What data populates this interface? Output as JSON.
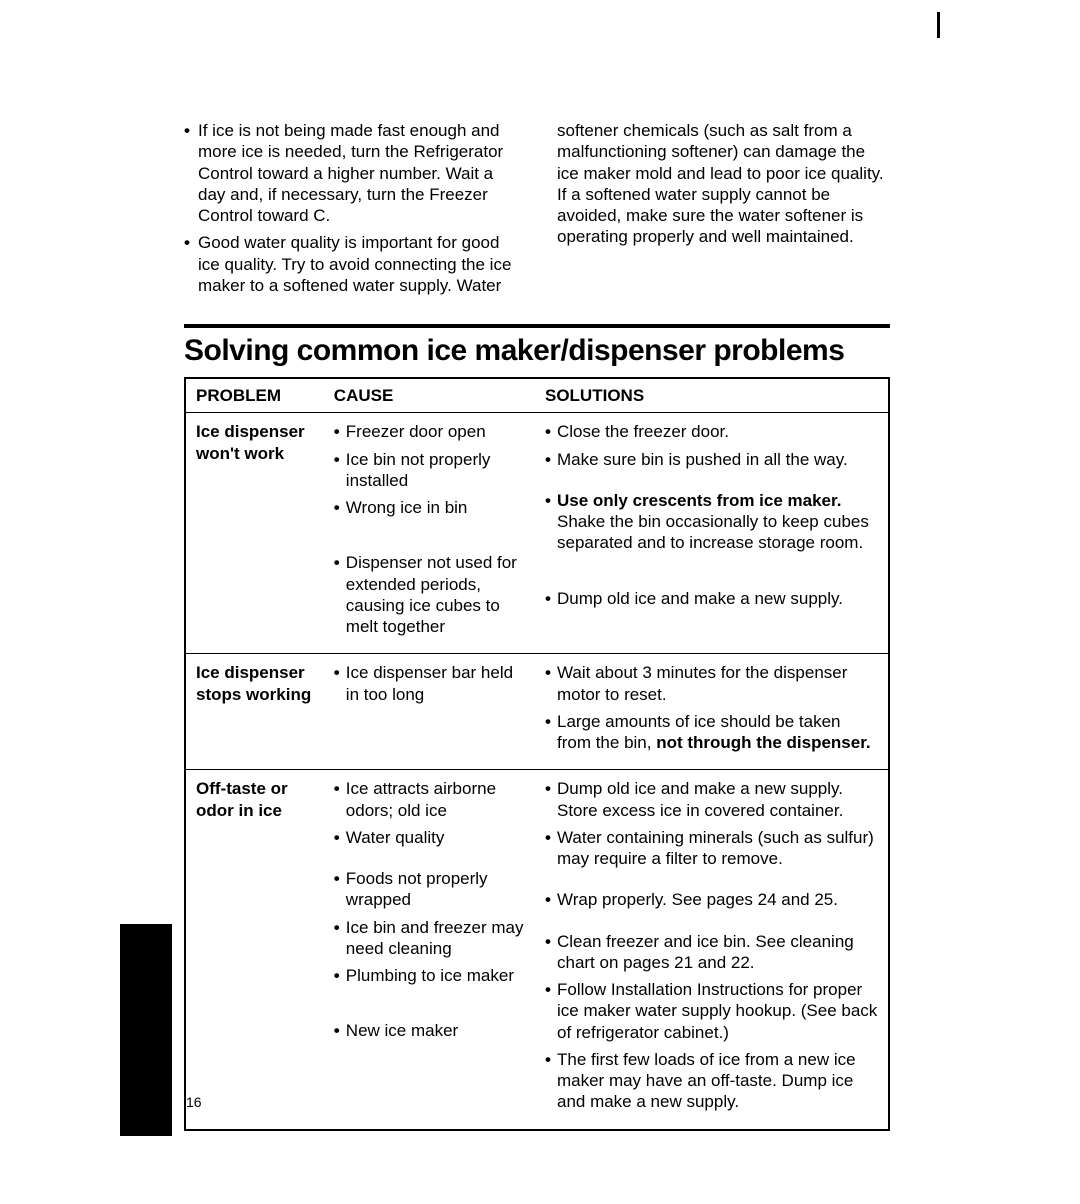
{
  "page_number": "16",
  "intro": {
    "left_bullets": [
      "If ice is not being made fast enough and more ice is needed, turn the Refrigerator Control toward a higher number. Wait a day and, if necessary, turn the Freezer Control toward C.",
      "Good water quality is important for good ice quality. Try to avoid connecting the ice maker to a softened water supply. Water"
    ],
    "right_text": "softener chemicals (such as salt from a malfunctioning softener) can damage the ice maker mold and lead to poor ice quality. If a softened water supply cannot be avoided, make sure the water softener is operating properly and well maintained."
  },
  "section_title": "Solving common ice maker/dispenser problems",
  "table": {
    "headers": {
      "problem": "PROBLEM",
      "cause": "CAUSE",
      "solutions": "SOLUTIONS"
    },
    "rows": [
      {
        "problem": "Ice dispenser won't work",
        "causes": [
          {
            "text": "Freezer door open"
          },
          {
            "text": "Ice bin not properly installed"
          },
          {
            "text": "Wrong ice in bin"
          },
          {
            "text": "Dispenser not used for extended periods, causing ice cubes to melt together",
            "gap": "big"
          }
        ],
        "solutions": [
          {
            "text": "Close the freezer door."
          },
          {
            "text": "Make sure bin is pushed in all the way."
          },
          {
            "html": "<span class='b'>Use only crescents from ice maker.</span> Shake the bin occasionally to keep cubes separated and to increase storage room.",
            "gap": "small"
          },
          {
            "text": "Dump old ice and make a new supply.",
            "gap": "big"
          }
        ]
      },
      {
        "problem": "Ice dispenser stops working",
        "causes": [
          {
            "text": "Ice dispenser bar held in too long"
          }
        ],
        "solutions": [
          {
            "text": "Wait about 3 minutes for the dispenser motor to reset."
          },
          {
            "html": "Large amounts of ice should be taken from the bin, <span class='b'>not through the dispenser.</span>"
          }
        ]
      },
      {
        "problem": "Off-taste or odor in ice",
        "causes": [
          {
            "text": "Ice attracts airborne odors; old ice"
          },
          {
            "text": "Water quality"
          },
          {
            "text": "Foods not properly wrapped",
            "gap": "small"
          },
          {
            "text": "Ice bin and freezer may need cleaning"
          },
          {
            "text": "Plumbing to ice maker"
          },
          {
            "text": "New ice maker",
            "gap": "big"
          }
        ],
        "solutions": [
          {
            "text": "Dump old ice and make a new supply. Store excess ice in covered container."
          },
          {
            "text": "Water containing minerals (such as sulfur) may require a filter to remove."
          },
          {
            "text": "Wrap properly. See pages 24 and 25.",
            "gap": "small"
          },
          {
            "text": "Clean freezer and ice bin. See cleaning chart on pages 21 and 22.",
            "gap": "small"
          },
          {
            "text": "Follow Installation Instructions for proper ice maker water supply hookup. (See back of refrigerator cabinet.)"
          },
          {
            "text": "The first few loads of ice from a new ice maker may have an off-taste. Dump ice and make a new supply."
          }
        ]
      }
    ]
  }
}
